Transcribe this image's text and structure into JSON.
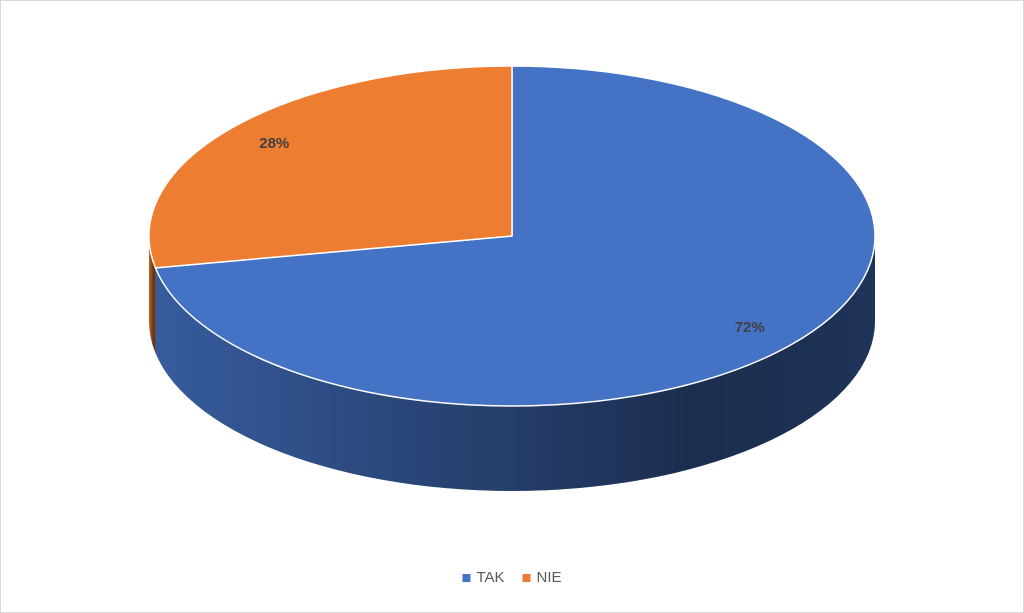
{
  "chart_data": {
    "type": "pie",
    "categories": [
      "TAK",
      "NIE"
    ],
    "values": [
      72,
      28
    ],
    "value_labels": [
      "72%",
      "28%"
    ],
    "colors": [
      "#4472c4",
      "#ed7d31"
    ],
    "legend": "bottom"
  }
}
